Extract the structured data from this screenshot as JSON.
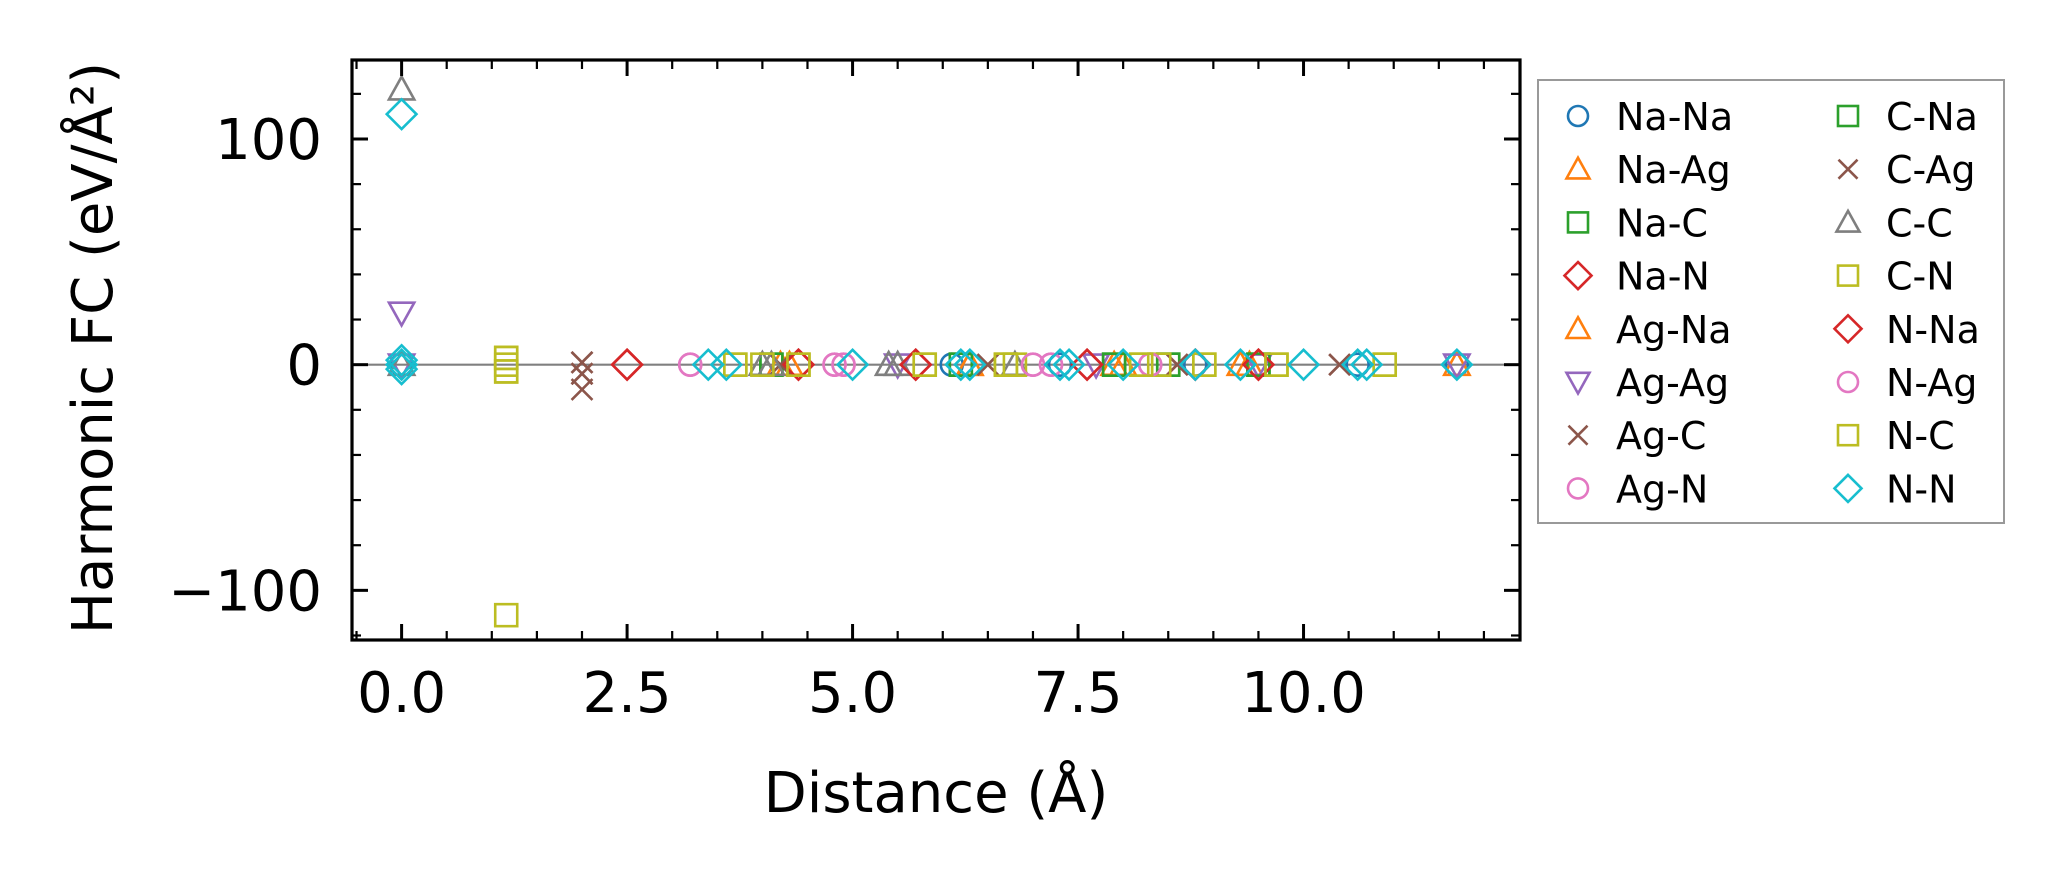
{
  "chart_data": {
    "type": "scatter",
    "title": "",
    "xlabel": "Distance (Å)",
    "ylabel": "Harmonic FC (eV/Å²)",
    "xlim": [
      -0.55,
      12.4
    ],
    "ylim": [
      -122,
      135
    ],
    "xticks": [
      0.0,
      2.5,
      5.0,
      7.5,
      10.0
    ],
    "xtick_labels": [
      "0.0",
      "2.5",
      "5.0",
      "7.5",
      "10.0"
    ],
    "yticks": [
      -100,
      0,
      100
    ],
    "ytick_labels": [
      "−100",
      "0",
      "100"
    ],
    "grid": false,
    "zero_line": true,
    "legend_position": "outside-right",
    "legend_columns": 2,
    "series": [
      {
        "name": "Na-Na",
        "marker": "circle",
        "color": "#1f77b4",
        "x": [
          0.0,
          6.1,
          7.3,
          8.8,
          10.6,
          11.7
        ],
        "y": [
          0.0,
          0.0,
          0.0,
          0.0,
          0.0,
          0.0
        ]
      },
      {
        "name": "Na-Ag",
        "marker": "triangle-up",
        "color": "#ff7f0e",
        "x": [
          4.3,
          6.3,
          8.0,
          9.4,
          11.7
        ],
        "y": [
          0.0,
          0.0,
          0.0,
          0.0,
          0.0
        ]
      },
      {
        "name": "Na-C",
        "marker": "square",
        "color": "#2ca02c",
        "x": [
          4.1,
          6.2,
          7.9,
          8.5,
          9.5
        ],
        "y": [
          0.0,
          0.0,
          0.0,
          0.0,
          0.0
        ]
      },
      {
        "name": "Na-N",
        "marker": "diamond",
        "color": "#d62728",
        "x": [
          2.5,
          4.4,
          5.7,
          7.6,
          8.8,
          9.5
        ],
        "y": [
          0.0,
          0.0,
          0.0,
          0.0,
          0.0,
          0.0
        ]
      },
      {
        "name": "Ag-Na",
        "marker": "triangle-up",
        "color": "#ff7f0e",
        "x": [
          4.2,
          6.3,
          7.9,
          9.3
        ],
        "y": [
          0.0,
          0.0,
          0.0,
          0.0
        ]
      },
      {
        "name": "Ag-Ag",
        "marker": "triangle-down",
        "color": "#9467bd",
        "x": [
          0.0,
          0.0,
          5.5,
          7.7,
          9.5,
          11.7
        ],
        "y": [
          23,
          0.0,
          0.0,
          0.0,
          0.0,
          0.0
        ]
      },
      {
        "name": "Ag-C",
        "marker": "x",
        "color": "#8c564b",
        "x": [
          2.0,
          2.0,
          2.0,
          4.2,
          6.5,
          8.6,
          10.4
        ],
        "y": [
          1.0,
          -4.0,
          -11.0,
          0.0,
          0.0,
          0.0,
          0.0
        ]
      },
      {
        "name": "Ag-N",
        "marker": "circle",
        "color": "#e377c2",
        "x": [
          3.2,
          4.8,
          4.9,
          7.0,
          7.2,
          8.3
        ],
        "y": [
          0.0,
          0.0,
          0.0,
          0.0,
          0.0,
          0.0
        ]
      },
      {
        "name": "C-Na",
        "marker": "square",
        "color": "#2ca02c",
        "x": [
          4.1,
          6.2,
          7.9,
          8.5,
          9.5
        ],
        "y": [
          0.0,
          0.0,
          0.0,
          0.0,
          0.0
        ]
      },
      {
        "name": "C-Ag",
        "marker": "x",
        "color": "#8c564b",
        "x": [
          2.0,
          2.0,
          4.2,
          6.5,
          8.6,
          10.4
        ],
        "y": [
          1.0,
          -4.0,
          0.0,
          0.0,
          0.0,
          0.0
        ]
      },
      {
        "name": "C-C",
        "marker": "triangle-up",
        "color": "#7f7f7f",
        "x": [
          0.0,
          0.0,
          4.0,
          4.1,
          5.4,
          5.5,
          6.8
        ],
        "y": [
          122,
          0.0,
          0.0,
          0.0,
          0.0,
          0.0,
          0.0
        ]
      },
      {
        "name": "C-N",
        "marker": "square",
        "color": "#bcbd22",
        "x": [
          1.16,
          1.16,
          1.16,
          1.16,
          3.7,
          4.0,
          4.4,
          5.8,
          6.7,
          6.8,
          8.2,
          8.4,
          8.9,
          9.7,
          10.9
        ],
        "y": [
          -111,
          3.0,
          0.0,
          -3.0,
          0.0,
          0.0,
          0.0,
          0.0,
          0.0,
          0.0,
          0.0,
          0.0,
          0.0,
          0.0,
          0.0
        ]
      },
      {
        "name": "N-Na",
        "marker": "diamond",
        "color": "#d62728",
        "x": [
          2.5,
          4.4,
          5.7,
          7.6,
          8.8,
          9.5
        ],
        "y": [
          0.0,
          0.0,
          0.0,
          0.0,
          0.0,
          0.0
        ]
      },
      {
        "name": "N-Ag",
        "marker": "circle",
        "color": "#e377c2",
        "x": [
          3.2,
          4.8,
          4.9,
          7.0,
          7.2,
          8.3
        ],
        "y": [
          0.0,
          0.0,
          0.0,
          0.0,
          0.0,
          0.0
        ]
      },
      {
        "name": "N-C",
        "marker": "square",
        "color": "#bcbd22",
        "x": [
          1.16,
          1.16,
          3.7,
          4.4,
          5.8,
          6.7,
          8.2,
          8.9,
          9.7,
          10.9
        ],
        "y": [
          3.0,
          -3.0,
          0.0,
          0.0,
          0.0,
          0.0,
          0.0,
          0.0,
          0.0,
          0.0
        ]
      },
      {
        "name": "N-N",
        "marker": "diamond",
        "color": "#17becf",
        "x": [
          0.0,
          0.0,
          0.0,
          0.0,
          3.4,
          3.6,
          5.0,
          6.2,
          6.3,
          7.3,
          7.4,
          8.0,
          8.8,
          9.3,
          10.0,
          10.6,
          10.7,
          11.7
        ],
        "y": [
          111,
          2.0,
          0.0,
          -2.0,
          0.0,
          0.0,
          0.0,
          0.0,
          0.0,
          0.0,
          0.0,
          0.0,
          0.0,
          0.0,
          0.0,
          0.0,
          0.0,
          0.0
        ]
      }
    ]
  }
}
